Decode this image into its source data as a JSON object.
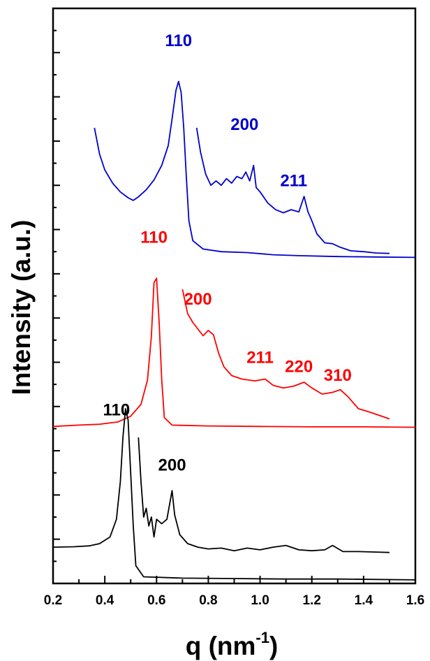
{
  "chart_data": {
    "type": "line",
    "title": "",
    "xlabel": "q (nm",
    "xlabel_sup": "-1",
    "xlabel_close": ")",
    "ylabel": "Intensity (a.u.)",
    "xlim": [
      0.2,
      1.6
    ],
    "ylim": [
      0,
      13
    ],
    "x_ticks": [
      "0.2",
      "0.4",
      "0.6",
      "0.8",
      "1.0",
      "1.2",
      "1.4",
      "1.6"
    ],
    "y_tick_labels_shown": false,
    "grid": false,
    "legend": "none",
    "series": [
      {
        "color": "#0000cc",
        "traces": [
          [
            [
              0.36,
              10.3
            ],
            [
              0.38,
              9.7
            ],
            [
              0.4,
              9.35
            ],
            [
              0.43,
              9.05
            ],
            [
              0.46,
              8.85
            ],
            [
              0.49,
              8.72
            ],
            [
              0.51,
              8.66
            ],
            [
              0.53,
              8.74
            ],
            [
              0.56,
              8.9
            ],
            [
              0.59,
              9.12
            ],
            [
              0.62,
              9.45
            ],
            [
              0.645,
              9.9
            ],
            [
              0.66,
              10.5
            ],
            [
              0.675,
              11.15
            ],
            [
              0.685,
              11.35
            ],
            [
              0.695,
              11.1
            ],
            [
              0.705,
              10.3
            ],
            [
              0.715,
              9.2
            ],
            [
              0.725,
              8.2
            ],
            [
              0.74,
              7.75
            ],
            [
              0.78,
              7.56
            ],
            [
              0.85,
              7.5
            ],
            [
              0.95,
              7.48
            ],
            [
              1.05,
              7.43
            ],
            [
              1.15,
              7.41
            ],
            [
              1.3,
              7.39
            ],
            [
              1.45,
              7.38
            ],
            [
              1.6,
              7.37
            ]
          ],
          [
            [
              0.755,
              10.3
            ],
            [
              0.77,
              9.75
            ],
            [
              0.79,
              9.25
            ],
            [
              0.81,
              9.0
            ],
            [
              0.83,
              9.1
            ],
            [
              0.85,
              9.0
            ],
            [
              0.87,
              9.15
            ],
            [
              0.89,
              9.05
            ],
            [
              0.91,
              9.2
            ],
            [
              0.93,
              9.15
            ],
            [
              0.945,
              9.3
            ],
            [
              0.96,
              9.1
            ],
            [
              0.975,
              9.45
            ],
            [
              0.985,
              8.95
            ],
            [
              1.0,
              8.85
            ],
            [
              1.03,
              8.6
            ],
            [
              1.06,
              8.45
            ],
            [
              1.09,
              8.38
            ],
            [
              1.12,
              8.45
            ],
            [
              1.15,
              8.4
            ],
            [
              1.17,
              8.75
            ],
            [
              1.185,
              8.4
            ],
            [
              1.2,
              8.2
            ],
            [
              1.22,
              7.9
            ],
            [
              1.25,
              7.7
            ],
            [
              1.28,
              7.68
            ],
            [
              1.31,
              7.6
            ],
            [
              1.35,
              7.52
            ],
            [
              1.4,
              7.5
            ],
            [
              1.45,
              7.47
            ],
            [
              1.5,
              7.46
            ]
          ]
        ]
      },
      {
        "color": "#ff0000",
        "traces": [
          [
            [
              0.2,
              3.55
            ],
            [
              0.3,
              3.58
            ],
            [
              0.38,
              3.6
            ],
            [
              0.45,
              3.65
            ],
            [
              0.5,
              3.78
            ],
            [
              0.54,
              4.05
            ],
            [
              0.565,
              4.6
            ],
            [
              0.58,
              5.6
            ],
            [
              0.59,
              6.8
            ],
            [
              0.6,
              6.9
            ],
            [
              0.61,
              5.9
            ],
            [
              0.62,
              4.6
            ],
            [
              0.63,
              3.75
            ],
            [
              0.66,
              3.58
            ],
            [
              0.8,
              3.56
            ],
            [
              1.0,
              3.55
            ],
            [
              1.2,
              3.54
            ],
            [
              1.4,
              3.54
            ],
            [
              1.6,
              3.53
            ]
          ],
          [
            [
              0.7,
              6.65
            ],
            [
              0.72,
              6.1
            ],
            [
              0.74,
              5.9
            ],
            [
              0.76,
              5.75
            ],
            [
              0.78,
              5.6
            ],
            [
              0.8,
              5.72
            ],
            [
              0.82,
              5.62
            ],
            [
              0.84,
              5.2
            ],
            [
              0.86,
              4.9
            ],
            [
              0.89,
              4.7
            ],
            [
              0.93,
              4.62
            ],
            [
              0.98,
              4.58
            ],
            [
              1.02,
              4.62
            ],
            [
              1.05,
              4.48
            ],
            [
              1.09,
              4.42
            ],
            [
              1.13,
              4.46
            ],
            [
              1.17,
              4.55
            ],
            [
              1.2,
              4.42
            ],
            [
              1.24,
              4.28
            ],
            [
              1.28,
              4.32
            ],
            [
              1.31,
              4.38
            ],
            [
              1.34,
              4.22
            ],
            [
              1.38,
              3.95
            ],
            [
              1.42,
              3.88
            ],
            [
              1.46,
              3.8
            ],
            [
              1.5,
              3.72
            ]
          ]
        ]
      },
      {
        "color": "#000000",
        "traces": [
          [
            [
              0.2,
              0.82
            ],
            [
              0.28,
              0.83
            ],
            [
              0.34,
              0.85
            ],
            [
              0.38,
              0.9
            ],
            [
              0.42,
              1.05
            ],
            [
              0.445,
              1.45
            ],
            [
              0.46,
              2.3
            ],
            [
              0.47,
              3.3
            ],
            [
              0.48,
              3.95
            ],
            [
              0.49,
              3.7
            ],
            [
              0.5,
              2.5
            ],
            [
              0.51,
              1.3
            ],
            [
              0.52,
              0.4
            ],
            [
              0.55,
              0.15
            ],
            [
              0.7,
              0.12
            ],
            [
              0.9,
              0.11
            ],
            [
              1.1,
              0.1
            ],
            [
              1.3,
              0.1
            ],
            [
              1.6,
              0.08
            ]
          ],
          [
            [
              0.53,
              3.3
            ],
            [
              0.54,
              2.3
            ],
            [
              0.55,
              1.5
            ],
            [
              0.56,
              1.7
            ],
            [
              0.57,
              1.3
            ],
            [
              0.58,
              1.5
            ],
            [
              0.59,
              1.05
            ],
            [
              0.6,
              1.45
            ],
            [
              0.62,
              1.35
            ],
            [
              0.64,
              1.45
            ],
            [
              0.66,
              2.1
            ],
            [
              0.67,
              1.55
            ],
            [
              0.69,
              1.1
            ],
            [
              0.72,
              0.9
            ],
            [
              0.76,
              0.82
            ],
            [
              0.8,
              0.78
            ],
            [
              0.85,
              0.8
            ],
            [
              0.9,
              0.74
            ],
            [
              0.95,
              0.8
            ],
            [
              1.0,
              0.76
            ],
            [
              1.05,
              0.82
            ],
            [
              1.1,
              0.86
            ],
            [
              1.15,
              0.76
            ],
            [
              1.2,
              0.74
            ],
            [
              1.25,
              0.76
            ],
            [
              1.28,
              0.86
            ],
            [
              1.32,
              0.72
            ],
            [
              1.38,
              0.72
            ],
            [
              1.45,
              0.71
            ],
            [
              1.5,
              0.7
            ]
          ]
        ]
      }
    ],
    "annotations": [
      {
        "text": "110",
        "color": "#0000cc",
        "x": 0.685,
        "y": 12.15
      },
      {
        "text": "200",
        "color": "#0000cc",
        "x": 0.94,
        "y": 10.25
      },
      {
        "text": "211",
        "color": "#0000cc",
        "x": 1.13,
        "y": 8.98
      },
      {
        "text": "110",
        "color": "#ff0000",
        "x": 0.59,
        "y": 7.7
      },
      {
        "text": "200",
        "color": "#ff0000",
        "x": 0.76,
        "y": 6.3
      },
      {
        "text": "211",
        "color": "#ff0000",
        "x": 1.0,
        "y": 4.98
      },
      {
        "text": "220",
        "color": "#ff0000",
        "x": 1.15,
        "y": 4.78
      },
      {
        "text": "310",
        "color": "#ff0000",
        "x": 1.3,
        "y": 4.58
      },
      {
        "text": "110",
        "color": "#000000",
        "x": 0.445,
        "y": 3.8
      },
      {
        "text": "200",
        "color": "#000000",
        "x": 0.66,
        "y": 2.55
      }
    ]
  }
}
